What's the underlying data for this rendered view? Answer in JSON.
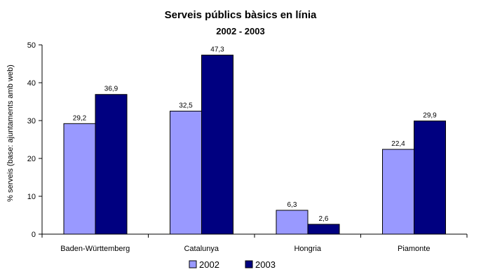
{
  "chart_data": {
    "type": "bar",
    "title": "Serveis públics bàsics en línia",
    "subtitle": "2002 - 2003",
    "xlabel": "",
    "ylabel": "% serveis (base: ajuntaments amb web)",
    "ylim": [
      0,
      50
    ],
    "yticks": [
      0,
      10,
      20,
      30,
      40,
      50
    ],
    "categories": [
      "Baden-Württemberg",
      "Catalunya",
      "Hongria",
      "Piamonte"
    ],
    "series": [
      {
        "name": "2002",
        "values": [
          29.2,
          32.5,
          6.3,
          22.4
        ],
        "labels": [
          "29,2",
          "32,5",
          "6,3",
          "22,4"
        ],
        "color": "#9999ff"
      },
      {
        "name": "2003",
        "values": [
          36.9,
          47.3,
          2.6,
          29.9
        ],
        "labels": [
          "36,9",
          "47,3",
          "2,6",
          "29,9"
        ],
        "color": "#000080"
      }
    ],
    "grid": false,
    "legend": "bottom"
  }
}
